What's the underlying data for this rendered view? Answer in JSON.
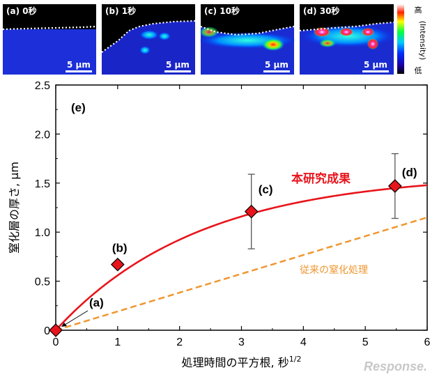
{
  "images": [
    {
      "label": "(a) 0秒",
      "scale": "5 μm"
    },
    {
      "label": "(b) 1秒",
      "scale": "5 μm"
    },
    {
      "label": "(c) 10秒",
      "scale": "5 μm"
    },
    {
      "label": "(d) 30秒",
      "scale": "5 μm"
    }
  ],
  "colorbar": {
    "high": "高",
    "low": "低",
    "label": "(Intensity)"
  },
  "chart_data": {
    "type": "scatter",
    "panel_label": "(e)",
    "xlabel": "処理時間の平方根, 秒",
    "xlabel_sup": "1/2",
    "ylabel": "窒化層の厚さ, μm",
    "xlim": [
      0,
      6
    ],
    "ylim": [
      0,
      2.5
    ],
    "xticks": [
      "0",
      "1",
      "2",
      "3",
      "4",
      "5",
      "6"
    ],
    "yticks": [
      "0",
      "0.5",
      "1.0",
      "1.5",
      "2.0",
      "2.5"
    ],
    "points": [
      {
        "label": "(a)",
        "x": 0,
        "y": 0
      },
      {
        "label": "(b)",
        "x": 1,
        "y": 0.67
      },
      {
        "label": "(c)",
        "x": 3.16,
        "y": 1.21,
        "err_low": 0.83,
        "err_high": 1.59
      },
      {
        "label": "(d)",
        "x": 5.48,
        "y": 1.47,
        "err_low": 1.14,
        "err_high": 1.8
      }
    ],
    "series": [
      {
        "name": "本研究成果",
        "color": "#e8141b",
        "style": "solid",
        "curve": {
          "a": 1.6,
          "k": 0.43
        }
      },
      {
        "name": "従来の窒化処理",
        "color": "#f0962e",
        "style": "dashed",
        "values": [
          [
            0,
            0
          ],
          [
            6,
            1.15
          ]
        ]
      }
    ],
    "marker_color": "#e8141b"
  },
  "watermark": "Response."
}
